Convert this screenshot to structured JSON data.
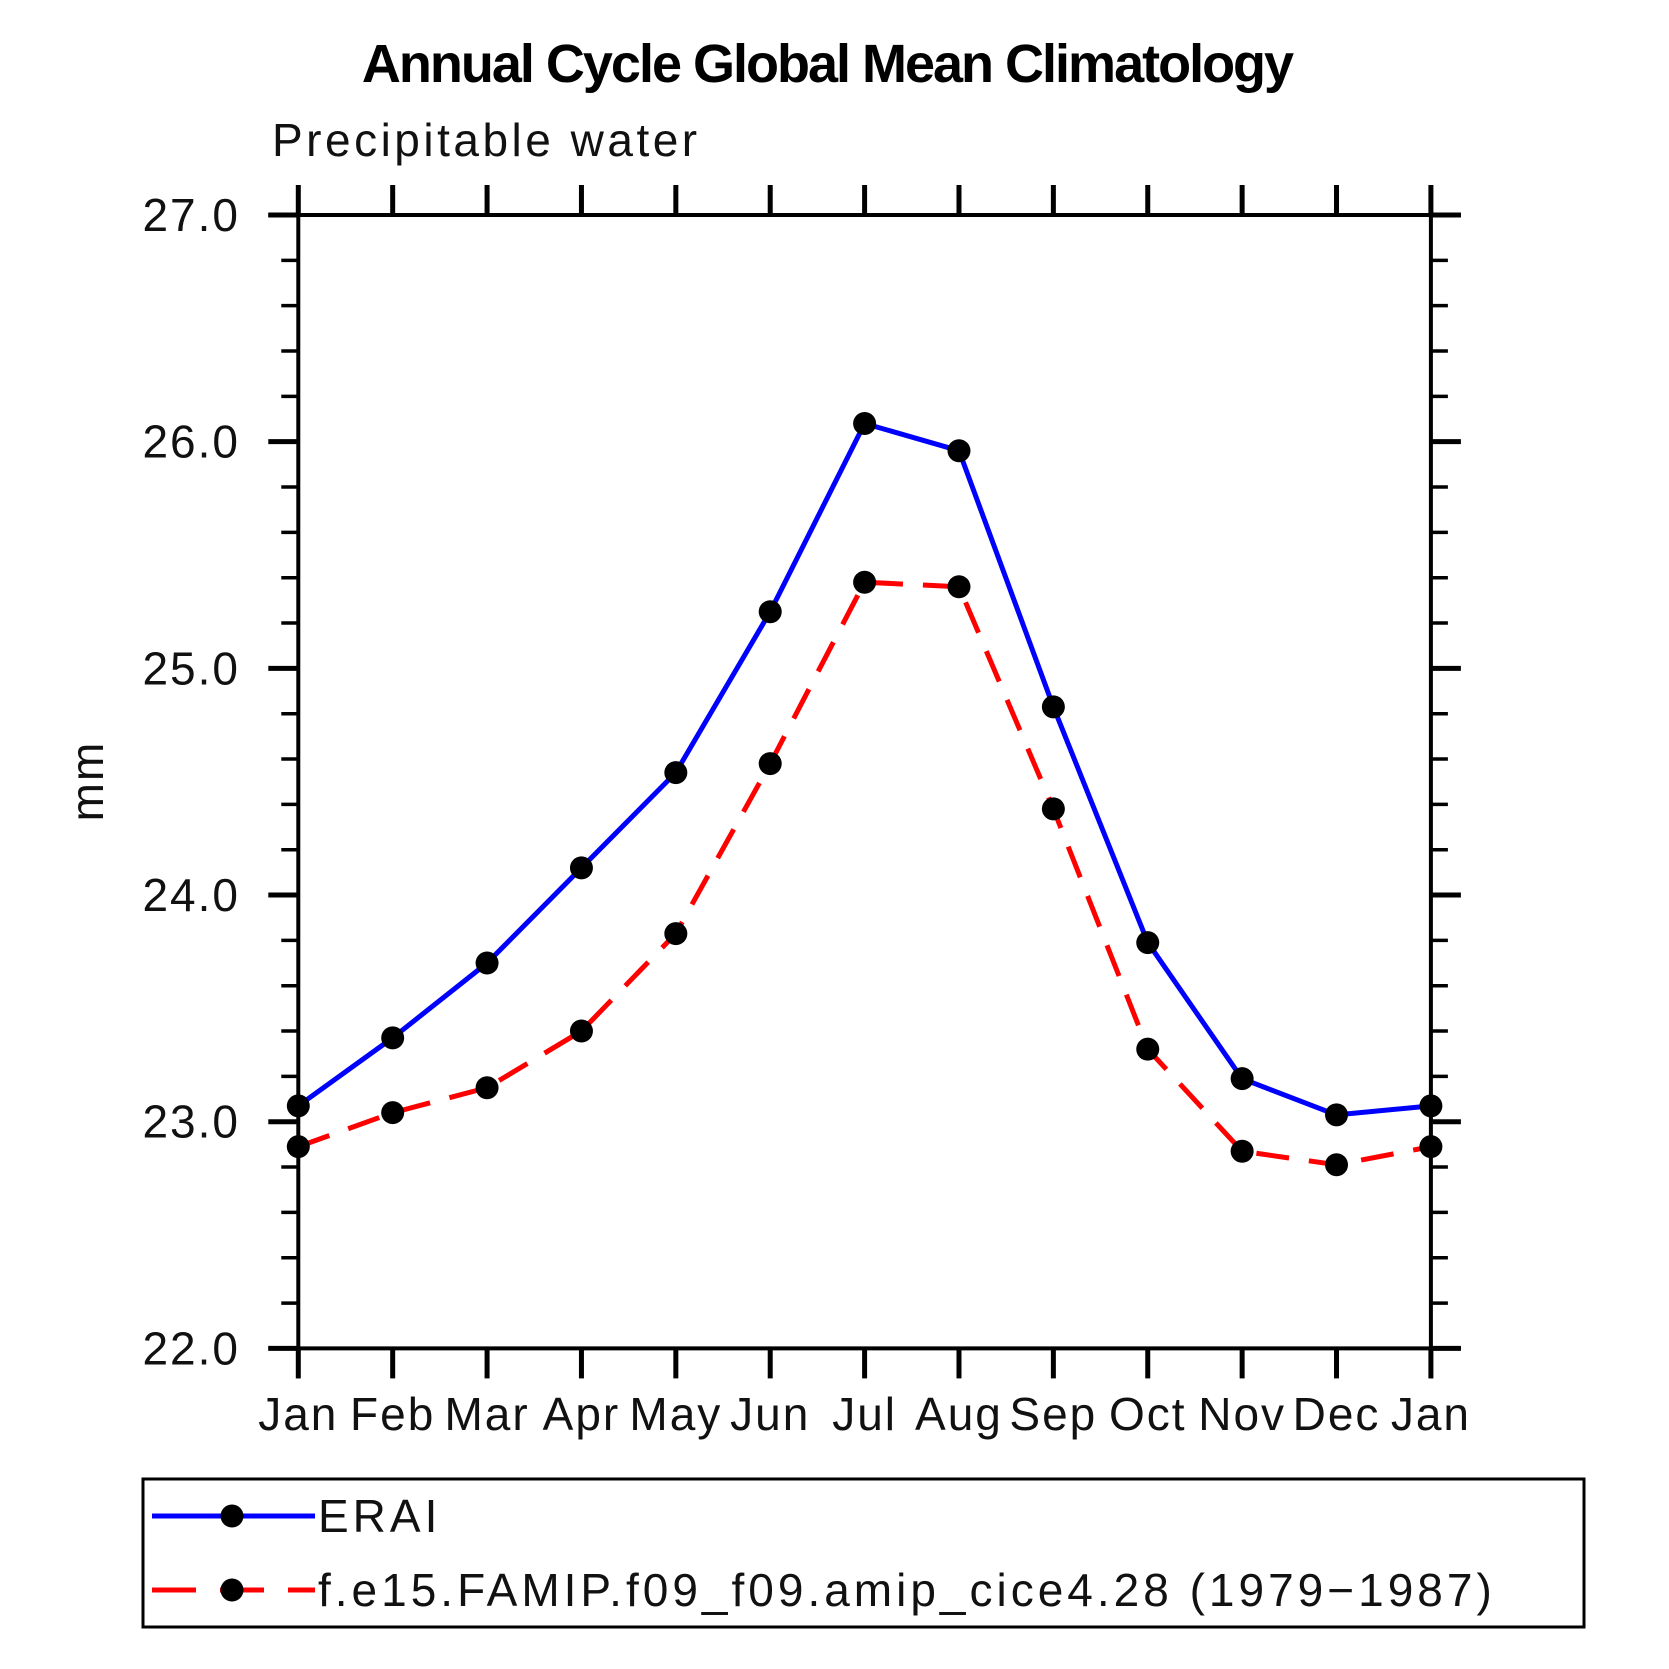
{
  "chart_data": {
    "type": "line",
    "title": "Annual Cycle Global Mean Climatology",
    "subtitle": "Precipitable water",
    "ylabel": "mm",
    "x_tick_labels": [
      "Jan",
      "Feb",
      "Mar",
      "Apr",
      "May",
      "Jun",
      "Jul",
      "Aug",
      "Sep",
      "Oct",
      "Nov",
      "Dec",
      "Jan"
    ],
    "ylim": [
      22.0,
      27.0
    ],
    "y_major_ticks": [
      22.0,
      23.0,
      24.0,
      25.0,
      26.0,
      27.0
    ],
    "y_major_tick_labels": [
      "22.0",
      "23.0",
      "24.0",
      "25.0",
      "26.0",
      "27.0"
    ],
    "y_minor_step": 0.2,
    "grid": false,
    "legend_position": "bottom-left-box",
    "series": [
      {
        "name": "ERAI",
        "color": "#0000ff",
        "line_style": "solid",
        "marker": "filled-circle",
        "marker_color": "#000000",
        "values": [
          23.07,
          23.37,
          23.7,
          24.12,
          24.54,
          25.25,
          26.08,
          25.96,
          24.83,
          23.79,
          23.19,
          23.03,
          23.07
        ]
      },
      {
        "name": "f.e15.FAMIP.f09_f09.amip_cice4.28 (1979−1987)",
        "color": "#ff0000",
        "line_style": "dashed",
        "marker": "filled-circle",
        "marker_color": "#000000",
        "values": [
          22.89,
          23.04,
          23.15,
          23.4,
          23.83,
          24.58,
          25.38,
          25.36,
          24.38,
          23.32,
          22.87,
          22.81,
          22.89
        ]
      }
    ]
  },
  "colors": {
    "erai_line": "#0000ff",
    "model_line": "#ff0000",
    "marker": "#000000",
    "axis": "#000000",
    "background": "#ffffff"
  }
}
